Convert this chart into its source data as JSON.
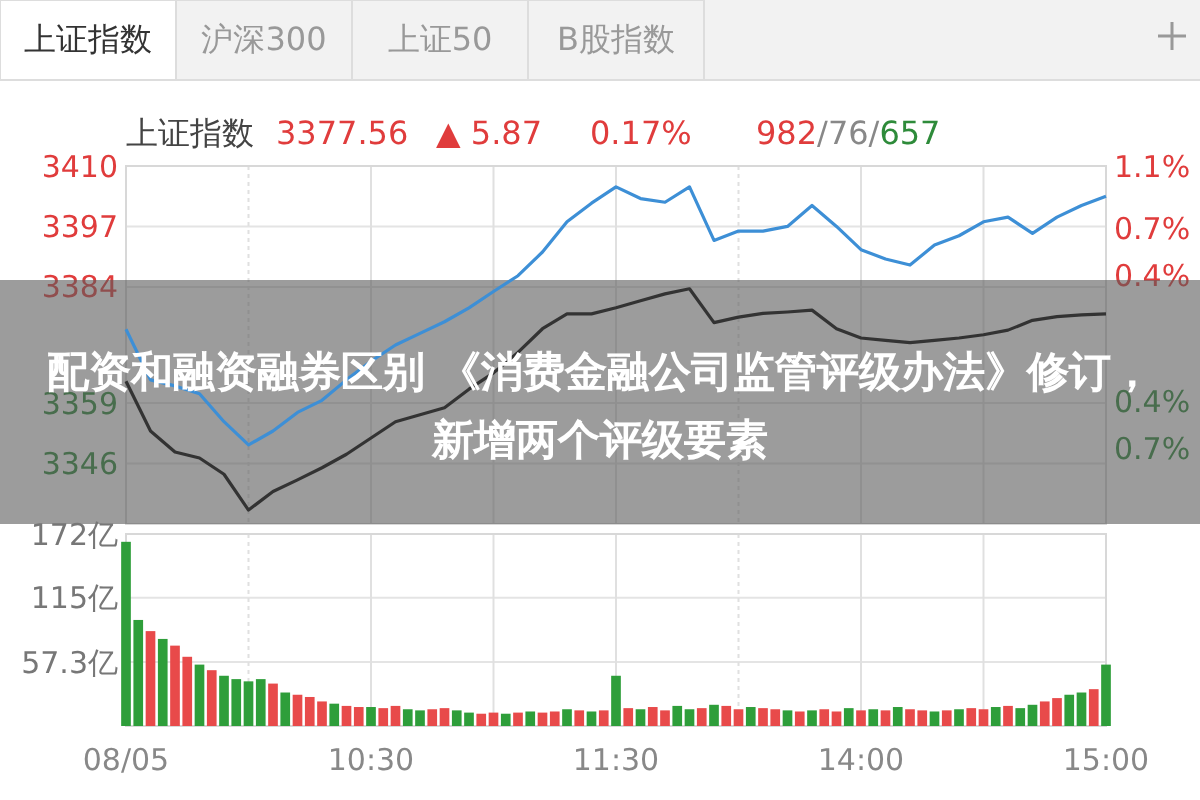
{
  "chart_data": [
    {
      "type": "line",
      "title": "上证指数",
      "annotations": [
        "上证指数",
        "沪深300",
        "上证50",
        "B股指数",
        "3377.56",
        "▲ 5.87",
        "0.17%",
        "982/76/657",
        "配资和融资融券区别 《消费金融公司监管评级办法》修订，新增两个评级要素"
      ],
      "categories": [
        null,
        null,
        null,
        null,
        null,
        null,
        null,
        null,
        null,
        null,
        null,
        null,
        null,
        null,
        null,
        null,
        null,
        null,
        null,
        null,
        null,
        null,
        null,
        null,
        null,
        null,
        null,
        null,
        null,
        null,
        null,
        null,
        null,
        null,
        null,
        null,
        null,
        null,
        null,
        null,
        null
      ],
      "ylim": [
        3333,
        3410
      ],
      "yticks": [
        3346,
        3359,
        3384,
        3397,
        3410
      ],
      "y2lim": [
        -1.18,
        1.1
      ],
      "y2ticks": [
        {
          "value": -0.7,
          "label": "0.7%"
        },
        {
          "value": -0.4,
          "label": "0.4%"
        },
        {
          "value": 0.4,
          "label": "0.4%"
        },
        {
          "value": 0.7,
          "label": "0.7%"
        },
        {
          "value": 1.1,
          "label": "1.1%"
        }
      ],
      "grid": true,
      "series": [
        {
          "color": "#3d8fd6",
          "values": [
            3374.9,
            3364,
            3362.7,
            3361,
            3355,
            3350,
            3353,
            3357,
            3359.6,
            3364,
            3368,
            3371.5,
            3374,
            3376.5,
            3379.5,
            3383,
            3386.4,
            3391.5,
            3398,
            3402,
            3405.5,
            3403,
            3402.2,
            3405.5,
            3394,
            3396,
            3396,
            3397,
            3401.5,
            3397,
            3392,
            3390,
            3388.7,
            3393,
            3395,
            3398,
            3399,
            3395.5,
            3399,
            3401.5,
            3403.5
          ]
        },
        {
          "color": "#333333",
          "values": [
            3363.7,
            3353,
            3348.5,
            3347.2,
            3343.7,
            3336,
            3340,
            3342.5,
            3345.1,
            3348,
            3351.5,
            3355,
            3356.5,
            3358,
            3362,
            3365.5,
            3369.9,
            3375,
            3378.2,
            3378.2,
            3379.5,
            3381,
            3382.5,
            3383.6,
            3376.3,
            3377.5,
            3378.3,
            3378.6,
            3379,
            3375,
            3373,
            3372.5,
            3372,
            3372.5,
            3373,
            3373.7,
            3374.7,
            3376.8,
            3377.6,
            3378,
            3378.2
          ]
        }
      ]
    },
    {
      "type": "bar",
      "categories": [
        "08/05",
        null,
        null,
        null,
        null,
        null,
        null,
        null,
        null,
        null,
        null,
        null,
        null,
        null,
        null,
        null,
        null,
        null,
        null,
        null,
        "10:30",
        null,
        null,
        null,
        null,
        null,
        null,
        null,
        null,
        null,
        null,
        null,
        null,
        null,
        null,
        null,
        null,
        null,
        null,
        null,
        "11:30",
        null,
        null,
        null,
        null,
        null,
        null,
        null,
        null,
        null,
        null,
        null,
        null,
        null,
        null,
        null,
        null,
        null,
        null,
        null,
        "14:00",
        null,
        null,
        null,
        null,
        null,
        null,
        null,
        null,
        null,
        null,
        null,
        null,
        null,
        null,
        null,
        null,
        null,
        null,
        null,
        "15:00"
      ],
      "ylim": [
        0,
        172
      ],
      "yticks": [
        {
          "value": 57.3,
          "label": "57.3亿"
        },
        {
          "value": 115,
          "label": "115亿"
        },
        {
          "value": 172,
          "label": "172亿"
        }
      ],
      "grid": true,
      "values": [
        165,
        95,
        85,
        78,
        72,
        62,
        55,
        50,
        45,
        42,
        40,
        42,
        38,
        30,
        28,
        26,
        22,
        20,
        18,
        17,
        17,
        16,
        18,
        15,
        14,
        15,
        16,
        14,
        12,
        11,
        12,
        11,
        12,
        13,
        12,
        13,
        15,
        14,
        13,
        14,
        45,
        16,
        15,
        17,
        14,
        18,
        15,
        16,
        19,
        18,
        15,
        17,
        16,
        15,
        14,
        13,
        14,
        15,
        13,
        16,
        14,
        15,
        14,
        17,
        15,
        14,
        13,
        14,
        15,
        16,
        15,
        17,
        18,
        16,
        19,
        22,
        25,
        28,
        30,
        33,
        55
      ],
      "colors": [
        "#2e9e3a",
        "#2e9e3a",
        "#e84a4a",
        "#2e9e3a",
        "#e84a4a",
        "#e84a4a",
        "#2e9e3a",
        "#e84a4a",
        "#2e9e3a",
        "#2e9e3a",
        "#2e9e3a",
        "#2e9e3a",
        "#e84a4a",
        "#2e9e3a",
        "#e84a4a",
        "#e84a4a",
        "#e84a4a",
        "#2e9e3a",
        "#e84a4a",
        "#e84a4a",
        "#2e9e3a",
        "#e84a4a",
        "#e84a4a",
        "#2e9e3a",
        "#2e9e3a",
        "#e84a4a",
        "#e84a4a",
        "#2e9e3a",
        "#2e9e3a",
        "#e84a4a",
        "#e84a4a",
        "#2e9e3a",
        "#e84a4a",
        "#2e9e3a",
        "#e84a4a",
        "#e84a4a",
        "#2e9e3a",
        "#e84a4a",
        "#2e9e3a",
        "#e84a4a",
        "#2e9e3a",
        "#e84a4a",
        "#2e9e3a",
        "#e84a4a",
        "#e84a4a",
        "#2e9e3a",
        "#2e9e3a",
        "#e84a4a",
        "#2e9e3a",
        "#e84a4a",
        "#e84a4a",
        "#2e9e3a",
        "#e84a4a",
        "#e84a4a",
        "#2e9e3a",
        "#e84a4a",
        "#2e9e3a",
        "#e84a4a",
        "#e84a4a",
        "#2e9e3a",
        "#e84a4a",
        "#2e9e3a",
        "#e84a4a",
        "#2e9e3a",
        "#e84a4a",
        "#e84a4a",
        "#2e9e3a",
        "#e84a4a",
        "#2e9e3a",
        "#e84a4a",
        "#e84a4a",
        "#2e9e3a",
        "#e84a4a",
        "#2e9e3a",
        "#2e9e3a",
        "#e84a4a",
        "#e84a4a",
        "#2e9e3a",
        "#2e9e3a",
        "#e84a4a",
        "#2e9e3a"
      ]
    }
  ]
}
